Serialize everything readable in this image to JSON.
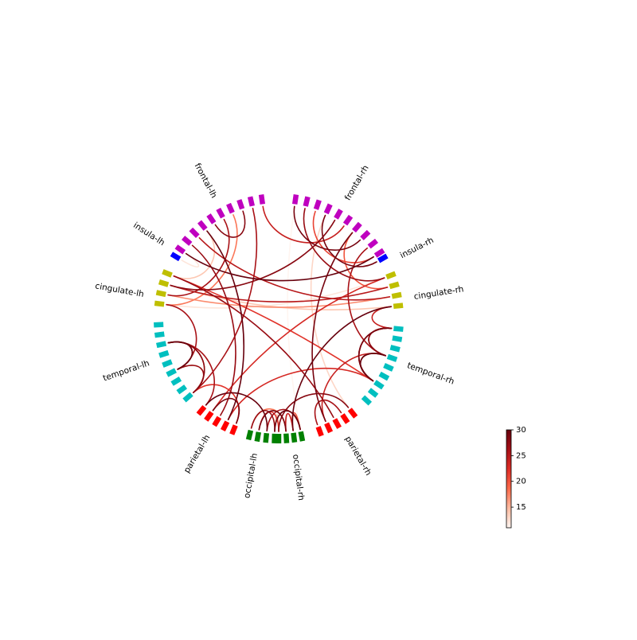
{
  "chart_data": {
    "type": "connectivity-circle",
    "title": "",
    "nodes": [
      {
        "label": "frontal-rh",
        "group": "frontal",
        "hemisphere": "rh",
        "segments": 10,
        "color": "#bf00bf"
      },
      {
        "label": "insula-rh",
        "group": "insula",
        "hemisphere": "rh",
        "segments": 1,
        "color": "#0000ff"
      },
      {
        "label": "cingulate-rh",
        "group": "cingulate",
        "hemisphere": "rh",
        "segments": 4,
        "color": "#bfbf00"
      },
      {
        "label": "temporal-rh",
        "group": "temporal",
        "hemisphere": "rh",
        "segments": 9,
        "color": "#00bfbf"
      },
      {
        "label": "parietal-rh",
        "group": "parietal",
        "hemisphere": "rh",
        "segments": 5,
        "color": "#ff0000"
      },
      {
        "label": "occipital-rh",
        "group": "occipital",
        "hemisphere": "rh",
        "segments": 4,
        "color": "#008000"
      },
      {
        "label": "occipital-lh",
        "group": "occipital",
        "hemisphere": "lh",
        "segments": 4,
        "color": "#008000"
      },
      {
        "label": "parietal-lh",
        "group": "parietal",
        "hemisphere": "lh",
        "segments": 5,
        "color": "#ff0000"
      },
      {
        "label": "temporal-lh",
        "group": "temporal",
        "hemisphere": "lh",
        "segments": 9,
        "color": "#00bfbf"
      },
      {
        "label": "cingulate-lh",
        "group": "cingulate",
        "hemisphere": "lh",
        "segments": 4,
        "color": "#bfbf00"
      },
      {
        "label": "insula-lh",
        "group": "insula",
        "hemisphere": "lh",
        "segments": 1,
        "color": "#0000ff"
      },
      {
        "label": "frontal-lh",
        "group": "frontal",
        "hemisphere": "lh",
        "segments": 10,
        "color": "#bf00bf"
      }
    ],
    "connections": [
      {
        "from": "frontal-lh",
        "to": "frontal-lh",
        "strength": 28
      },
      {
        "from": "frontal-lh",
        "to": "frontal-rh",
        "strength": 30
      },
      {
        "from": "frontal-lh",
        "to": "frontal-rh",
        "strength": 24
      },
      {
        "from": "frontal-rh",
        "to": "frontal-rh",
        "strength": 29
      },
      {
        "from": "frontal-rh",
        "to": "frontal-rh",
        "strength": 21
      },
      {
        "from": "frontal-lh",
        "to": "cingulate-lh",
        "strength": 26
      },
      {
        "from": "frontal-lh",
        "to": "cingulate-lh",
        "strength": 18
      },
      {
        "from": "frontal-lh",
        "to": "cingulate-lh",
        "strength": 14
      },
      {
        "from": "frontal-lh",
        "to": "insula-lh",
        "strength": 12
      },
      {
        "from": "frontal-rh",
        "to": "cingulate-rh",
        "strength": 27
      },
      {
        "from": "frontal-rh",
        "to": "cingulate-rh",
        "strength": 20
      },
      {
        "from": "frontal-rh",
        "to": "insula-rh",
        "strength": 29
      },
      {
        "from": "frontal-lh",
        "to": "cingulate-rh",
        "strength": 25
      },
      {
        "from": "frontal-rh",
        "to": "cingulate-lh",
        "strength": 28
      },
      {
        "from": "frontal-lh",
        "to": "temporal-lh",
        "strength": 26
      },
      {
        "from": "frontal-lh",
        "to": "parietal-lh",
        "strength": 30
      },
      {
        "from": "frontal-lh",
        "to": "parietal-lh",
        "strength": 27
      },
      {
        "from": "frontal-rh",
        "to": "parietal-rh",
        "strength": 29
      },
      {
        "from": "frontal-rh",
        "to": "parietal-rh",
        "strength": 13
      },
      {
        "from": "frontal-rh",
        "to": "temporal-rh",
        "strength": 26
      },
      {
        "from": "cingulate-lh",
        "to": "cingulate-rh",
        "strength": 14
      },
      {
        "from": "cingulate-lh",
        "to": "cingulate-rh",
        "strength": 12
      },
      {
        "from": "cingulate-lh",
        "to": "cingulate-rh",
        "strength": 17
      },
      {
        "from": "cingulate-lh",
        "to": "temporal-rh",
        "strength": 22
      },
      {
        "from": "cingulate-lh",
        "to": "temporal-lh",
        "strength": 26
      },
      {
        "from": "cingulate-rh",
        "to": "cingulate-lh",
        "strength": 25
      },
      {
        "from": "cingulate-rh",
        "to": "temporal-rh",
        "strength": 24
      },
      {
        "from": "cingulate-lh",
        "to": "parietal-rh",
        "strength": 27
      },
      {
        "from": "cingulate-rh",
        "to": "parietal-lh",
        "strength": 23
      },
      {
        "from": "cingulate-rh",
        "to": "occipital-rh",
        "strength": 30
      },
      {
        "from": "temporal-lh",
        "to": "temporal-lh",
        "strength": 30
      },
      {
        "from": "temporal-lh",
        "to": "temporal-lh",
        "strength": 27
      },
      {
        "from": "temporal-lh",
        "to": "temporal-lh",
        "strength": 25
      },
      {
        "from": "temporal-lh",
        "to": "temporal-lh",
        "strength": 22
      },
      {
        "from": "temporal-lh",
        "to": "temporal-lh",
        "strength": 18
      },
      {
        "from": "temporal-lh",
        "to": "temporal-lh",
        "strength": 15
      },
      {
        "from": "temporal-lh",
        "to": "temporal-lh",
        "strength": 28
      },
      {
        "from": "temporal-rh",
        "to": "temporal-rh",
        "strength": 30
      },
      {
        "from": "temporal-rh",
        "to": "temporal-rh",
        "strength": 29
      },
      {
        "from": "temporal-rh",
        "to": "temporal-rh",
        "strength": 27
      },
      {
        "from": "temporal-rh",
        "to": "temporal-rh",
        "strength": 25
      },
      {
        "from": "temporal-rh",
        "to": "temporal-rh",
        "strength": 23
      },
      {
        "from": "temporal-rh",
        "to": "temporal-rh",
        "strength": 21
      },
      {
        "from": "temporal-rh",
        "to": "temporal-rh",
        "strength": 28
      },
      {
        "from": "temporal-rh",
        "to": "temporal-rh",
        "strength": 26
      },
      {
        "from": "temporal-lh",
        "to": "parietal-lh",
        "strength": 26
      },
      {
        "from": "temporal-lh",
        "to": "parietal-lh",
        "strength": 22
      },
      {
        "from": "temporal-rh",
        "to": "parietal-rh",
        "strength": 24
      },
      {
        "from": "temporal-rh",
        "to": "parietal-lh",
        "strength": 23
      },
      {
        "from": "parietal-lh",
        "to": "parietal-lh",
        "strength": 29
      },
      {
        "from": "parietal-rh",
        "to": "parietal-rh",
        "strength": 26
      },
      {
        "from": "parietal-lh",
        "to": "occipital-lh",
        "strength": 30
      },
      {
        "from": "parietal-rh",
        "to": "occipital-rh",
        "strength": 28
      },
      {
        "from": "occipital-lh",
        "to": "occipital-lh",
        "strength": 27
      },
      {
        "from": "occipital-lh",
        "to": "occipital-rh",
        "strength": 30
      },
      {
        "from": "occipital-lh",
        "to": "occipital-rh",
        "strength": 29
      },
      {
        "from": "occipital-lh",
        "to": "occipital-rh",
        "strength": 26
      },
      {
        "from": "occipital-lh",
        "to": "occipital-rh",
        "strength": 22
      },
      {
        "from": "occipital-lh",
        "to": "occipital-rh",
        "strength": 18
      },
      {
        "from": "occipital-lh",
        "to": "occipital-rh",
        "strength": 14
      },
      {
        "from": "occipital-rh",
        "to": "occipital-rh",
        "strength": 24
      },
      {
        "from": "occipital-rh",
        "to": "occipital-rh",
        "strength": 20
      },
      {
        "from": "frontal-rh",
        "to": "occipital-rh",
        "strength": 11
      }
    ],
    "colorbar": {
      "colormap": "Reds",
      "vmin": 11,
      "vmax": 30,
      "ticks": [
        15,
        20,
        25,
        30
      ],
      "tick_labels": [
        "15",
        "20",
        "25",
        "30"
      ]
    }
  }
}
